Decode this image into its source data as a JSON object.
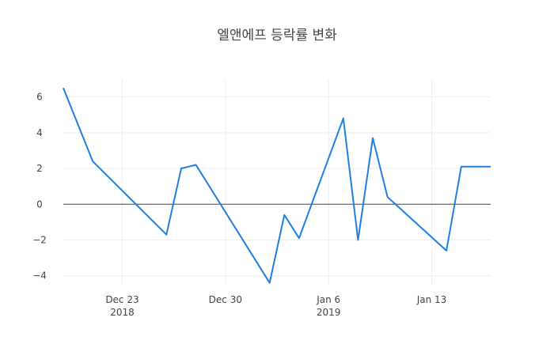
{
  "chart_data": {
    "type": "line",
    "title": "엘앤에프 등락률 변화",
    "xlabel": "",
    "ylabel": "",
    "x_ticks": [
      {
        "date": "2018-12-23",
        "label": "Dec 23",
        "sublabel": "2018"
      },
      {
        "date": "2018-12-30",
        "label": "Dec 30",
        "sublabel": ""
      },
      {
        "date": "2019-01-06",
        "label": "Jan 6",
        "sublabel": "2019"
      },
      {
        "date": "2019-01-13",
        "label": "Jan 13",
        "sublabel": ""
      }
    ],
    "y_ticks": [
      -4,
      -2,
      0,
      2,
      4,
      6
    ],
    "y_tick_labels": [
      "−4",
      "−2",
      "0",
      "2",
      "4",
      "6"
    ],
    "xlim": [
      "2018-12-19",
      "2019-01-17"
    ],
    "ylim": [
      -4.5,
      7
    ],
    "grid": true,
    "zero_line": true,
    "colors": {
      "line": "#1f7fe0",
      "grid": "#eeeeee",
      "zero": "#444444",
      "text": "#444444"
    },
    "series": [
      {
        "x": [
          "2018-12-19",
          "2018-12-21",
          "2018-12-26",
          "2018-12-27",
          "2018-12-28",
          "2019-01-02",
          "2019-01-03",
          "2019-01-04",
          "2019-01-07",
          "2019-01-08",
          "2019-01-09",
          "2019-01-10",
          "2019-01-14",
          "2019-01-15",
          "2019-01-17"
        ],
        "values": [
          6.5,
          2.4,
          -1.7,
          2.0,
          2.2,
          -4.4,
          -0.6,
          -1.9,
          4.8,
          -2.0,
          3.7,
          0.4,
          -2.6,
          2.1,
          2.1
        ]
      }
    ]
  }
}
